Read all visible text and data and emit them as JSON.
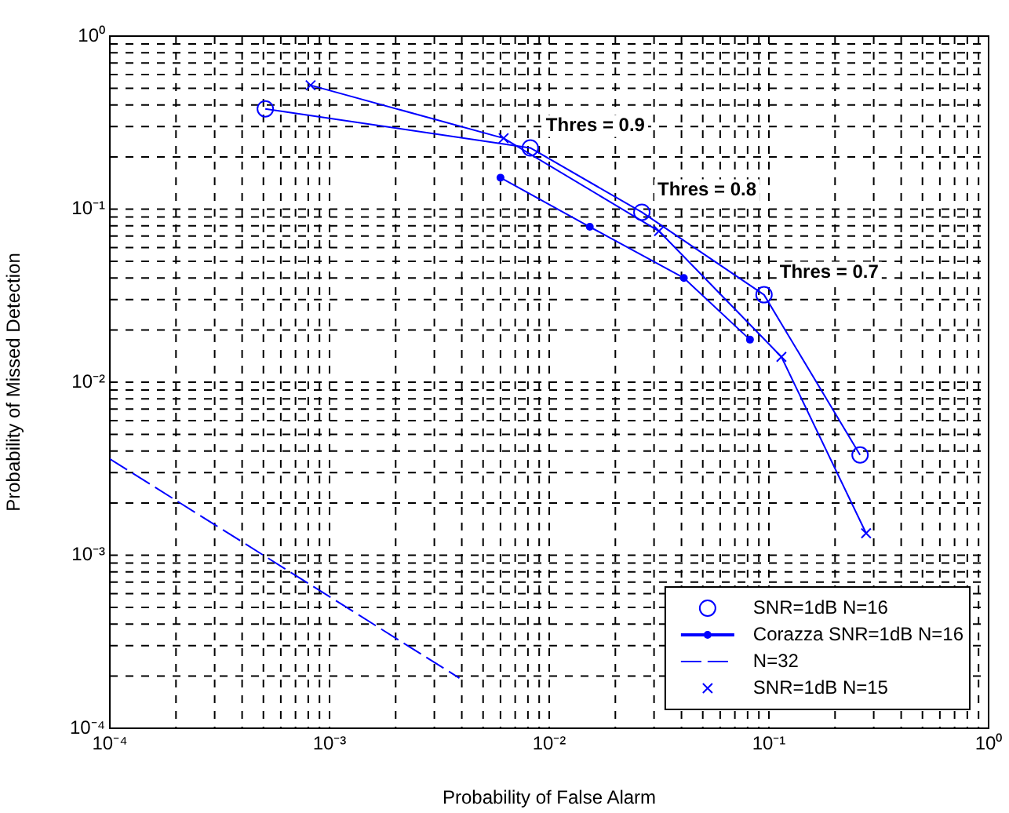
{
  "chart_data": {
    "type": "line",
    "xlabel": "Probability of False Alarm",
    "ylabel": "Probability of Missed Detection",
    "log": "xy",
    "grid": true,
    "legend": "bottom right",
    "xlim": [
      0.0001,
      1
    ],
    "ylim": [
      0.0001,
      1
    ],
    "xticks": [
      {
        "value": 0.0001,
        "label": "10⁻⁴"
      },
      {
        "value": 0.001,
        "label": "10⁻³"
      },
      {
        "value": 0.01,
        "label": "10⁻²"
      },
      {
        "value": 0.1,
        "label": "10⁻¹"
      },
      {
        "value": 1,
        "label": "10⁰"
      }
    ],
    "yticks": [
      {
        "value": 0.0001,
        "label": "10⁻⁴"
      },
      {
        "value": 0.001,
        "label": "10⁻³"
      },
      {
        "value": 0.01,
        "label": "10⁻²"
      },
      {
        "value": 0.1,
        "label": "10⁻¹"
      },
      {
        "value": 1,
        "label": "10⁰"
      }
    ],
    "series": [
      {
        "name": "SNR=1dB N=16",
        "type": "scatter",
        "marker": "circle",
        "color": "#0000ff",
        "x": [
          0.00051,
          0.0082,
          0.0264,
          0.095,
          0.26
        ],
        "values": [
          0.38,
          0.226,
          0.096,
          0.032,
          0.0038
        ]
      },
      {
        "name": "Corazza SNR=1dB N=16",
        "marker": "circle",
        "color": "#0000ff",
        "x": [
          0.006,
          0.0153,
          0.041,
          0.082
        ],
        "values": [
          0.152,
          0.079,
          0.04,
          0.0176
        ]
      },
      {
        "name": "N=32",
        "line_style": "dashed",
        "color": "#0000ff",
        "x": [
          0.0001,
          0.0039
        ],
        "values": [
          0.0036,
          0.000195
        ]
      },
      {
        "name": "SNR=1dB N=15",
        "type": "scatter",
        "marker": "cross",
        "color": "#0000ff",
        "x": [
          0.00082,
          0.0062,
          0.0316,
          0.114,
          0.277
        ],
        "values": [
          0.52,
          0.257,
          0.0746,
          0.014,
          0.00134
        ]
      },
      {
        "color": "#0000ff",
        "x": [
          0.00051,
          0.0082,
          0.0264,
          0.095,
          0.26
        ],
        "values": [
          0.38,
          0.226,
          0.096,
          0.032,
          0.0038
        ]
      },
      {
        "color": "#0000ff",
        "x": [
          0.00082,
          0.0062,
          0.0316,
          0.114,
          0.277
        ],
        "values": [
          0.52,
          0.257,
          0.0746,
          0.014,
          0.00134
        ]
      }
    ],
    "annotations": [
      {
        "text": "Thres = 0.9",
        "x": 0.0082,
        "y": 0.226
      },
      {
        "text": "Thres = 0.8",
        "x": 0.0264,
        "y": 0.096
      },
      {
        "text": "Thres = 0.7",
        "x": 0.095,
        "y": 0.032
      }
    ]
  }
}
